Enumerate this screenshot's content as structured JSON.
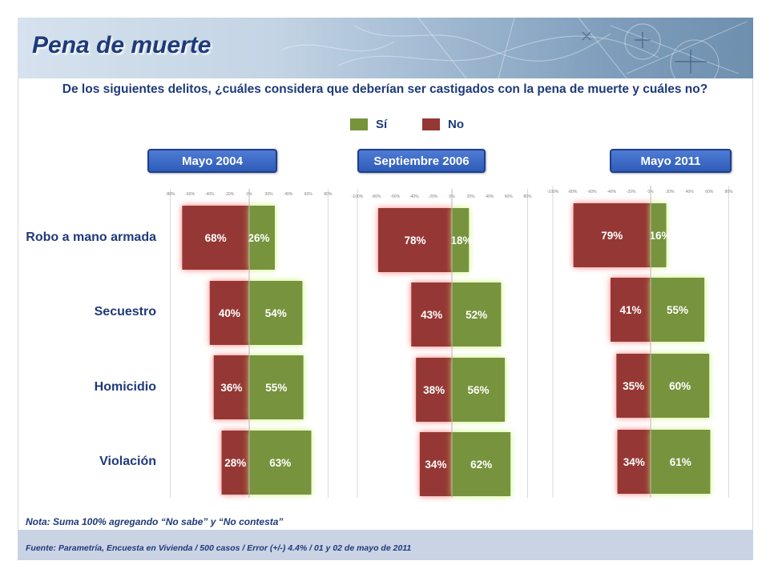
{
  "title": "Pena de muerte",
  "subtitle": "De los siguientes delitos, ¿cuáles considera que deberían ser castigados con la pena de muerte y cuáles no?",
  "legend": {
    "si_label": "Sí",
    "no_label": "No",
    "si_color": "#77933c",
    "no_color": "#953735"
  },
  "note": "Nota: Suma 100% agregando “No sabe” y “No contesta”",
  "source": "Fuente: Parametría, Encuesta en Vivienda / 500 casos / Error (+/-) 4.4% / 01 y 02 de mayo de 2011",
  "chart_data": [
    {
      "type": "bar",
      "title": "Mayo 2004",
      "categories": [
        "Robo a mano armada",
        "Secuestro",
        "Homicidio",
        "Violación"
      ],
      "xlim": [
        -80,
        80
      ],
      "ticks": [
        "-80%",
        "-60%",
        "-40%",
        "-20%",
        "0%",
        "20%",
        "40%",
        "60%",
        "80%"
      ],
      "series": [
        {
          "name": "Sí",
          "values": [
            26,
            54,
            55,
            63
          ],
          "labels": [
            "26%",
            "54%",
            "55%",
            "63%"
          ]
        },
        {
          "name": "No",
          "values": [
            68,
            40,
            36,
            28
          ],
          "labels": [
            "68%",
            "40%",
            "36%",
            "28%"
          ]
        }
      ]
    },
    {
      "type": "bar",
      "title": "Septiembre 2006",
      "categories": [
        "Robo a mano armada",
        "Secuestro",
        "Homicidio",
        "Violación"
      ],
      "xlim": [
        -100,
        80
      ],
      "ticks": [
        "-100%",
        "-80%",
        "-60%",
        "-40%",
        "-20%",
        "0%",
        "20%",
        "40%",
        "60%",
        "80%"
      ],
      "series": [
        {
          "name": "Sí",
          "values": [
            18,
            52,
            56,
            62
          ],
          "labels": [
            "18%",
            "52%",
            "56%",
            "62%"
          ]
        },
        {
          "name": "No",
          "values": [
            78,
            43,
            38,
            34
          ],
          "labels": [
            "78%",
            "43%",
            "38%",
            "34%"
          ]
        }
      ]
    },
    {
      "type": "bar",
      "title": "Mayo 2011",
      "categories": [
        "Robo a mano armada",
        "Secuestro",
        "Homicidio",
        "Violación"
      ],
      "xlim": [
        -100,
        80
      ],
      "ticks": [
        "-100%",
        "-80%",
        "-60%",
        "-40%",
        "-20%",
        "0%",
        "20%",
        "40%",
        "60%",
        "80%"
      ],
      "series": [
        {
          "name": "Sí",
          "values": [
            16,
            55,
            60,
            61
          ],
          "labels": [
            "16%",
            "55%",
            "60%",
            "61%"
          ]
        },
        {
          "name": "No",
          "values": [
            79,
            41,
            35,
            34
          ],
          "labels": [
            "79%",
            "41%",
            "35%",
            "34%"
          ]
        }
      ]
    }
  ]
}
